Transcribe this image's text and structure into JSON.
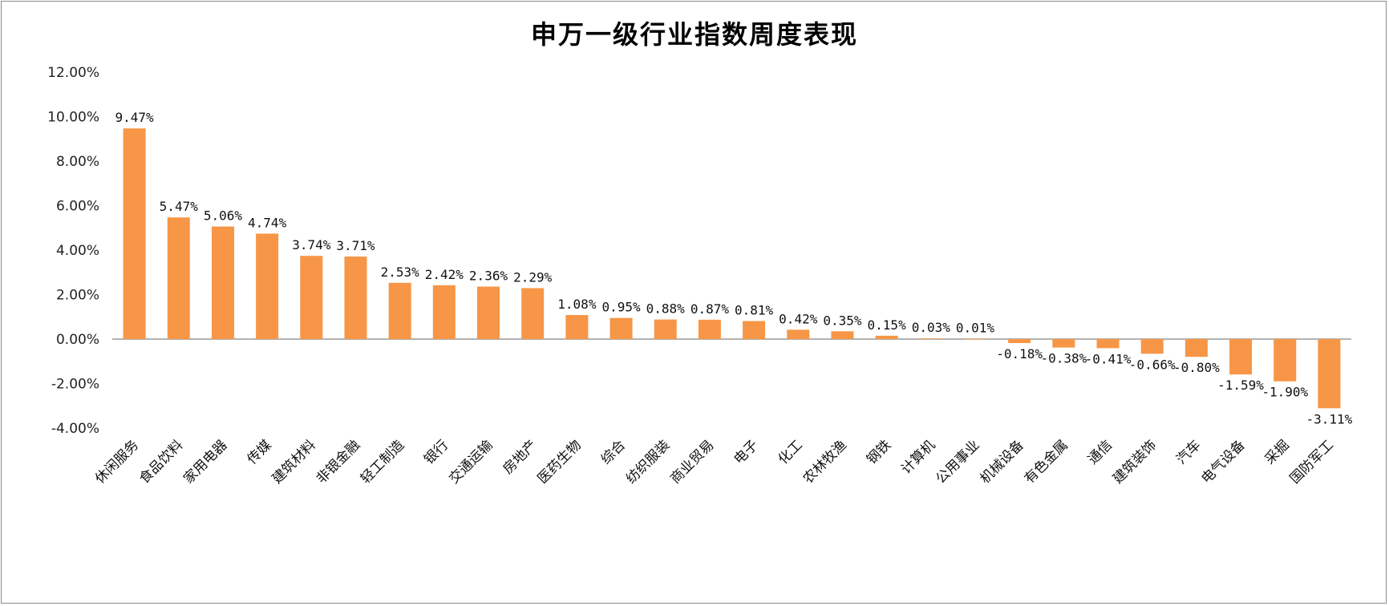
{
  "chart_data": {
    "type": "bar",
    "title": "申万一级行业指数周度表现",
    "xlabel": "",
    "ylabel": "",
    "ylim": [
      -4,
      12
    ],
    "ytick_step": 2,
    "yticks": [
      "12.00%",
      "10.00%",
      "8.00%",
      "6.00%",
      "4.00%",
      "2.00%",
      "0.00%",
      "-2.00%",
      "-4.00%"
    ],
    "grid": false,
    "legend": "none",
    "bar_color": "#F79646",
    "categories": [
      "休闲服务",
      "食品饮料",
      "家用电器",
      "传媒",
      "建筑材料",
      "非银金融",
      "轻工制造",
      "银行",
      "交通运输",
      "房地产",
      "医药生物",
      "综合",
      "纺织服装",
      "商业贸易",
      "电子",
      "化工",
      "农林牧渔",
      "钢铁",
      "计算机",
      "公用事业",
      "机械设备",
      "有色金属",
      "通信",
      "建筑装饰",
      "汽车",
      "电气设备",
      "采掘",
      "国防军工"
    ],
    "values": [
      9.47,
      5.47,
      5.06,
      4.74,
      3.74,
      3.71,
      2.53,
      2.42,
      2.36,
      2.29,
      1.08,
      0.95,
      0.88,
      0.87,
      0.81,
      0.42,
      0.35,
      0.15,
      0.03,
      0.01,
      -0.18,
      -0.38,
      -0.41,
      -0.66,
      -0.8,
      -1.59,
      -1.9,
      -3.11
    ],
    "value_labels": [
      "9.47%",
      "5.47%",
      "5.06%",
      "4.74%",
      "3.74%",
      "3.71%",
      "2.53%",
      "2.42%",
      "2.36%",
      "2.29%",
      "1.08%",
      "0.95%",
      "0.88%",
      "0.87%",
      "0.81%",
      "0.42%",
      "0.35%",
      "0.15%",
      "0.03%",
      "0.01%",
      "-0.18%",
      "-0.38%",
      "-0.41%",
      "-0.66%",
      "-0.80%",
      "-1.59%",
      "-1.90%",
      "-3.11%"
    ]
  }
}
